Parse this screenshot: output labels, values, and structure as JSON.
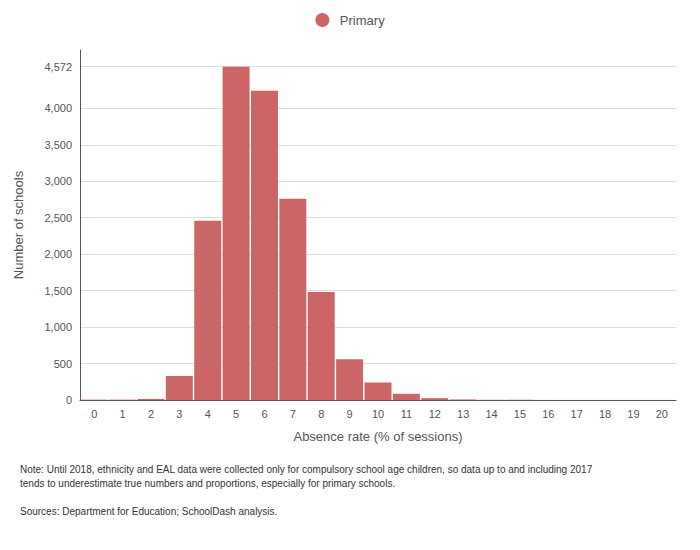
{
  "chart_data": {
    "type": "bar",
    "categories": [
      "0",
      "1",
      "2",
      "3",
      "4",
      "5",
      "6",
      "7",
      "8",
      "9",
      "10",
      "11",
      "12",
      "13",
      "14",
      "15",
      "16",
      "17",
      "18",
      "19",
      "20"
    ],
    "series": [
      {
        "name": "Primary",
        "color": "#cc6666",
        "values": [
          5,
          5,
          15,
          330,
          2460,
          4572,
          4240,
          2760,
          1480,
          560,
          240,
          85,
          25,
          8,
          3,
          2,
          1,
          1,
          1,
          1,
          1
        ]
      }
    ],
    "xlabel": "Absence rate (% of sessions)",
    "ylabel": "Number of schools",
    "ylim": [
      0,
      4800
    ],
    "yticks": [
      0,
      500,
      {
        "value": 1000,
        "label": "1,000"
      },
      {
        "value": 1500,
        "label": "1,500"
      },
      {
        "value": 2000,
        "label": "2,000"
      },
      {
        "value": 2500,
        "label": "2,500"
      },
      {
        "value": 3000,
        "label": "3,000"
      },
      {
        "value": 3500,
        "label": "3,500"
      },
      {
        "value": 4000,
        "label": "4,000"
      },
      {
        "value": 4572,
        "label": "4,572"
      }
    ],
    "grid": true,
    "legend": "top",
    "annotations": [
      "Note: Until 2018, ethnicity and EAL data were collected only for compulsory school age children, so data up to and including 2017\ntends to underestimate true numbers and proportions, especially for primary schools.",
      "Sources: Department for Education; SchoolDash analysis."
    ]
  }
}
